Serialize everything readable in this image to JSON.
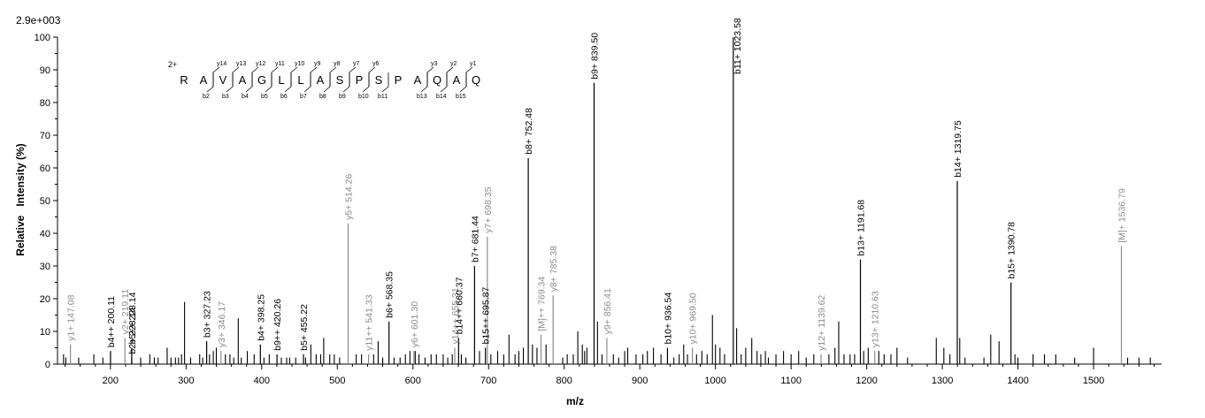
{
  "chart_data": {
    "type": "bar",
    "max_intensity_label": "2.9e+003",
    "xlabel": "m/z",
    "ylabel": "Relative   Intensity (%)",
    "xlim": [
      130,
      1590
    ],
    "ylim": [
      0,
      100
    ],
    "x_ticks": [
      100,
      200,
      300,
      400,
      500,
      600,
      700,
      800,
      900,
      1000,
      1100,
      1200,
      1300,
      1400,
      1500
    ],
    "y_ticks": [
      0,
      10,
      20,
      30,
      40,
      50,
      60,
      70,
      80,
      90,
      100
    ],
    "colors": {
      "annotated_b": "#000000",
      "annotated_y": "#8c8c8c",
      "unannotated": "#000000"
    },
    "annotated_peaks": [
      {
        "mz": 147.08,
        "intensity": 6,
        "label": "y1+ 147.08",
        "series": "y"
      },
      {
        "mz": 200.11,
        "intensity": 4,
        "label": "b4++ 200.11",
        "series": "b"
      },
      {
        "mz": 219.11,
        "intensity": 8,
        "label": "y2+ 219.11",
        "series": "y"
      },
      {
        "mz": 228.14,
        "intensity": 2,
        "label": "b2+ 228.14",
        "series": "b"
      },
      {
        "mz": 228.14,
        "intensity": 5,
        "label": "b5++ 228.14",
        "series": "b"
      },
      {
        "mz": 327.23,
        "intensity": 7,
        "label": "b3+ 327.23",
        "series": "b"
      },
      {
        "mz": 346.17,
        "intensity": 4,
        "label": "y3+ 346.17",
        "series": "y"
      },
      {
        "mz": 398.25,
        "intensity": 6,
        "label": "b4+ 398.25",
        "series": "b"
      },
      {
        "mz": 420.26,
        "intensity": 3,
        "label": "b9++ 420.26",
        "series": "b"
      },
      {
        "mz": 455.22,
        "intensity": 3,
        "label": "b5+ 455.22",
        "series": "b"
      },
      {
        "mz": 514.26,
        "intensity": 43,
        "label": "y5+ 514.26",
        "series": "y"
      },
      {
        "mz": 541.33,
        "intensity": 3,
        "label": "y11++ 541.33",
        "series": "y"
      },
      {
        "mz": 568.35,
        "intensity": 13,
        "label": "b6+ 568.35",
        "series": "b"
      },
      {
        "mz": 601.3,
        "intensity": 4,
        "label": "y6+ 601.30",
        "series": "y"
      },
      {
        "mz": 655.31,
        "intensity": 5,
        "label": "y14++ 655.31",
        "series": "y"
      },
      {
        "mz": 660.37,
        "intensity": 8,
        "label": "b14++ 660.37",
        "series": "b"
      },
      {
        "mz": 681.44,
        "intensity": 30,
        "label": "b7+ 681.44",
        "series": "b"
      },
      {
        "mz": 695.87,
        "intensity": 5,
        "label": "b15++ 695.87",
        "series": "b"
      },
      {
        "mz": 698.35,
        "intensity": 39,
        "label": "y7+ 698.35",
        "series": "y"
      },
      {
        "mz": 752.48,
        "intensity": 63,
        "label": "b8+ 752.48",
        "series": "b"
      },
      {
        "mz": 769.34,
        "intensity": 9,
        "label": "[M]++ 769.34",
        "series": "y"
      },
      {
        "mz": 785.38,
        "intensity": 21,
        "label": "y8+ 785.38",
        "series": "y"
      },
      {
        "mz": 839.5,
        "intensity": 86,
        "label": "b9+ 839.50",
        "series": "b"
      },
      {
        "mz": 856.41,
        "intensity": 8,
        "label": "y9+ 856.41",
        "series": "y"
      },
      {
        "mz": 936.54,
        "intensity": 5,
        "label": "b10+ 936.54",
        "series": "b"
      },
      {
        "mz": 969.5,
        "intensity": 5,
        "label": "y10+ 969.50",
        "series": "y"
      },
      {
        "mz": 1023.58,
        "intensity": 100,
        "label": "b11+ 1023.58",
        "series": "b"
      },
      {
        "mz": 1139.62,
        "intensity": 3,
        "label": "y12+ 1139.62",
        "series": "y"
      },
      {
        "mz": 1191.68,
        "intensity": 32,
        "label": "b13+ 1191.68",
        "series": "b"
      },
      {
        "mz": 1210.63,
        "intensity": 4,
        "label": "y13+ 1210.63",
        "series": "y"
      },
      {
        "mz": 1319.75,
        "intensity": 56,
        "label": "b14+ 1319.75",
        "series": "b"
      },
      {
        "mz": 1390.78,
        "intensity": 25,
        "label": "b15+ 1390.78",
        "series": "b"
      },
      {
        "mz": 1536.79,
        "intensity": 36,
        "label": "[M]+ 1536.79",
        "series": "y"
      }
    ],
    "other_peaks": [
      [
        138,
        3
      ],
      [
        141,
        2
      ],
      [
        158,
        2
      ],
      [
        178,
        3
      ],
      [
        190,
        2
      ],
      [
        240,
        2
      ],
      [
        252,
        3
      ],
      [
        258,
        2
      ],
      [
        263,
        2
      ],
      [
        275,
        5
      ],
      [
        280,
        2
      ],
      [
        286,
        2
      ],
      [
        290,
        2
      ],
      [
        294,
        3
      ],
      [
        298,
        19
      ],
      [
        306,
        2
      ],
      [
        318,
        3
      ],
      [
        322,
        2
      ],
      [
        331,
        3
      ],
      [
        336,
        4
      ],
      [
        340,
        5
      ],
      [
        352,
        3
      ],
      [
        358,
        3
      ],
      [
        363,
        2
      ],
      [
        369,
        14
      ],
      [
        373,
        2
      ],
      [
        381,
        4
      ],
      [
        390,
        3
      ],
      [
        403,
        2
      ],
      [
        410,
        3
      ],
      [
        426,
        2
      ],
      [
        433,
        2
      ],
      [
        437,
        2
      ],
      [
        445,
        2
      ],
      [
        458,
        2
      ],
      [
        465,
        6
      ],
      [
        472,
        3
      ],
      [
        478,
        3
      ],
      [
        482,
        8
      ],
      [
        490,
        3
      ],
      [
        496,
        3
      ],
      [
        503,
        2
      ],
      [
        525,
        3
      ],
      [
        532,
        3
      ],
      [
        548,
        3
      ],
      [
        554,
        7
      ],
      [
        560,
        2
      ],
      [
        575,
        2
      ],
      [
        583,
        2
      ],
      [
        590,
        3
      ],
      [
        596,
        4
      ],
      [
        603,
        4
      ],
      [
        608,
        3
      ],
      [
        616,
        2
      ],
      [
        624,
        3
      ],
      [
        631,
        3
      ],
      [
        640,
        3
      ],
      [
        646,
        2
      ],
      [
        652,
        3
      ],
      [
        664,
        3
      ],
      [
        670,
        2
      ],
      [
        688,
        4
      ],
      [
        703,
        3
      ],
      [
        712,
        4
      ],
      [
        720,
        3
      ],
      [
        727,
        9
      ],
      [
        735,
        3
      ],
      [
        740,
        4
      ],
      [
        746,
        5
      ],
      [
        758,
        6
      ],
      [
        764,
        5
      ],
      [
        776,
        6
      ],
      [
        798,
        2
      ],
      [
        804,
        3
      ],
      [
        812,
        3
      ],
      [
        818,
        10
      ],
      [
        824,
        6
      ],
      [
        827,
        4
      ],
      [
        830,
        5
      ],
      [
        844,
        13
      ],
      [
        850,
        3
      ],
      [
        865,
        3
      ],
      [
        872,
        2
      ],
      [
        880,
        4
      ],
      [
        884,
        5
      ],
      [
        895,
        3
      ],
      [
        904,
        3
      ],
      [
        910,
        4
      ],
      [
        918,
        5
      ],
      [
        928,
        3
      ],
      [
        945,
        2
      ],
      [
        952,
        3
      ],
      [
        958,
        6
      ],
      [
        963,
        3
      ],
      [
        975,
        3
      ],
      [
        982,
        4
      ],
      [
        989,
        3
      ],
      [
        996,
        15
      ],
      [
        1000,
        6
      ],
      [
        1006,
        5
      ],
      [
        1012,
        3
      ],
      [
        1028,
        11
      ],
      [
        1034,
        3
      ],
      [
        1040,
        5
      ],
      [
        1048,
        8
      ],
      [
        1055,
        4
      ],
      [
        1060,
        3
      ],
      [
        1066,
        4
      ],
      [
        1070,
        2
      ],
      [
        1080,
        3
      ],
      [
        1090,
        4
      ],
      [
        1100,
        3
      ],
      [
        1110,
        4
      ],
      [
        1120,
        2
      ],
      [
        1130,
        3
      ],
      [
        1150,
        3
      ],
      [
        1158,
        5
      ],
      [
        1163,
        13
      ],
      [
        1170,
        3
      ],
      [
        1178,
        3
      ],
      [
        1184,
        3
      ],
      [
        1196,
        4
      ],
      [
        1202,
        5
      ],
      [
        1216,
        4
      ],
      [
        1223,
        3
      ],
      [
        1232,
        3
      ],
      [
        1240,
        5
      ],
      [
        1254,
        2
      ],
      [
        1292,
        8
      ],
      [
        1302,
        5
      ],
      [
        1310,
        3
      ],
      [
        1323,
        8
      ],
      [
        1330,
        2
      ],
      [
        1355,
        2
      ],
      [
        1364,
        9
      ],
      [
        1375,
        7
      ],
      [
        1396,
        3
      ],
      [
        1400,
        2
      ],
      [
        1420,
        3
      ],
      [
        1435,
        3
      ],
      [
        1450,
        3
      ],
      [
        1475,
        2
      ],
      [
        1500,
        5
      ],
      [
        1545,
        2
      ],
      [
        1560,
        2
      ],
      [
        1575,
        2
      ]
    ],
    "sequence": {
      "charge": "2+",
      "residues": [
        "R",
        "A",
        "V",
        "A",
        "G",
        "L",
        "L",
        "A",
        "S",
        "P",
        "S",
        "P",
        "A",
        "Q",
        "A",
        "Q"
      ],
      "y_ions": [
        {
          "after": 2,
          "label": "y14"
        },
        {
          "after": 3,
          "label": "y13"
        },
        {
          "after": 4,
          "label": "y12"
        },
        {
          "after": 5,
          "label": "y11"
        },
        {
          "after": 6,
          "label": "y10"
        },
        {
          "after": 7,
          "label": "y9"
        },
        {
          "after": 8,
          "label": "y8"
        },
        {
          "after": 9,
          "label": "y7"
        },
        {
          "after": 10,
          "label": "y6"
        },
        {
          "after": 13,
          "label": "y3"
        },
        {
          "after": 14,
          "label": "y2"
        },
        {
          "after": 15,
          "label": "y1"
        }
      ],
      "b_ions": [
        {
          "after": 2,
          "label": "b2"
        },
        {
          "after": 3,
          "label": "b3"
        },
        {
          "after": 4,
          "label": "b4"
        },
        {
          "after": 5,
          "label": "b5"
        },
        {
          "after": 6,
          "label": "b6"
        },
        {
          "after": 7,
          "label": "b7"
        },
        {
          "after": 8,
          "label": "b8"
        },
        {
          "after": 9,
          "label": "b9"
        },
        {
          "after": 10,
          "label": "b10"
        },
        {
          "after": 11,
          "label": "b11"
        },
        {
          "after": 13,
          "label": "b13"
        },
        {
          "after": 14,
          "label": "b14"
        },
        {
          "after": 15,
          "label": "b15"
        }
      ]
    }
  }
}
